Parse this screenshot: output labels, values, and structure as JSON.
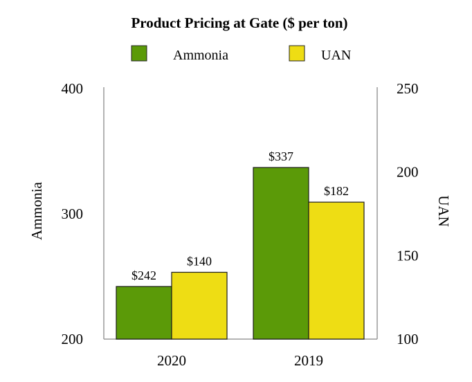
{
  "chart_data": {
    "type": "bar",
    "title": "Product Pricing at Gate ($ per ton)",
    "categories": [
      "2020",
      "2019"
    ],
    "series": [
      {
        "name": "Ammonia",
        "values": [
          242,
          337
        ],
        "labels": [
          "$242",
          "$337"
        ],
        "axis": "left",
        "color": "#5b9a08"
      },
      {
        "name": "UAN",
        "values": [
          140,
          182
        ],
        "labels": [
          "$140",
          "$182"
        ],
        "axis": "right",
        "color": "#eedd14"
      }
    ],
    "left_axis": {
      "label": "Ammonia",
      "ylim": [
        200,
        400
      ],
      "ticks": [
        "200",
        "300",
        "400"
      ]
    },
    "right_axis": {
      "label": "UAN",
      "ylim": [
        100,
        250
      ],
      "ticks": [
        "100",
        "150",
        "200",
        "250"
      ]
    },
    "legend_position": "top-center",
    "grid": false
  }
}
